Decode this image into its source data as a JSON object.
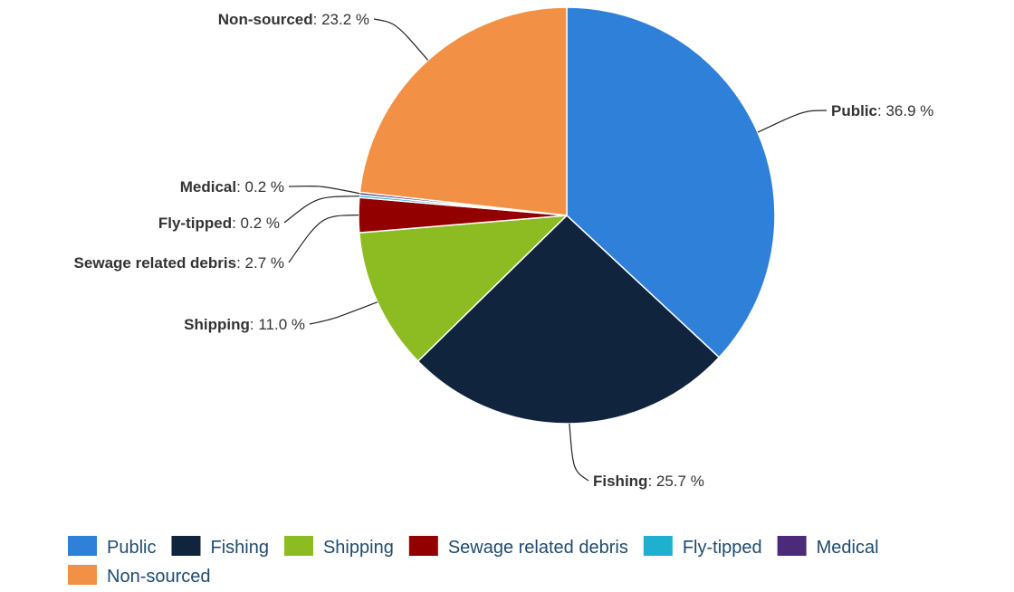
{
  "chart_data": {
    "type": "pie",
    "title": "",
    "unit_suffix": " %",
    "slices": [
      {
        "name": "Public",
        "value": 36.9,
        "label": "36.9",
        "color": "#2f80d9"
      },
      {
        "name": "Fishing",
        "value": 25.7,
        "label": "25.7",
        "color": "#10243d"
      },
      {
        "name": "Shipping",
        "value": 11.0,
        "label": "11.0",
        "color": "#8cbb22"
      },
      {
        "name": "Sewage related debris",
        "value": 2.7,
        "label": "2.7",
        "color": "#920000"
      },
      {
        "name": "Fly-tipped",
        "value": 0.2,
        "label": "0.2",
        "color": "#1fb0d0"
      },
      {
        "name": "Medical",
        "value": 0.2,
        "label": "0.2",
        "color": "#4b2a7a"
      },
      {
        "name": "Non-sourced",
        "value": 23.2,
        "label": "23.2",
        "color": "#f29145"
      }
    ],
    "legend": {
      "position": "bottom",
      "items": [
        "Public",
        "Fishing",
        "Shipping",
        "Sewage related debris",
        "Fly-tipped",
        "Medical",
        "Non-sourced"
      ]
    }
  }
}
